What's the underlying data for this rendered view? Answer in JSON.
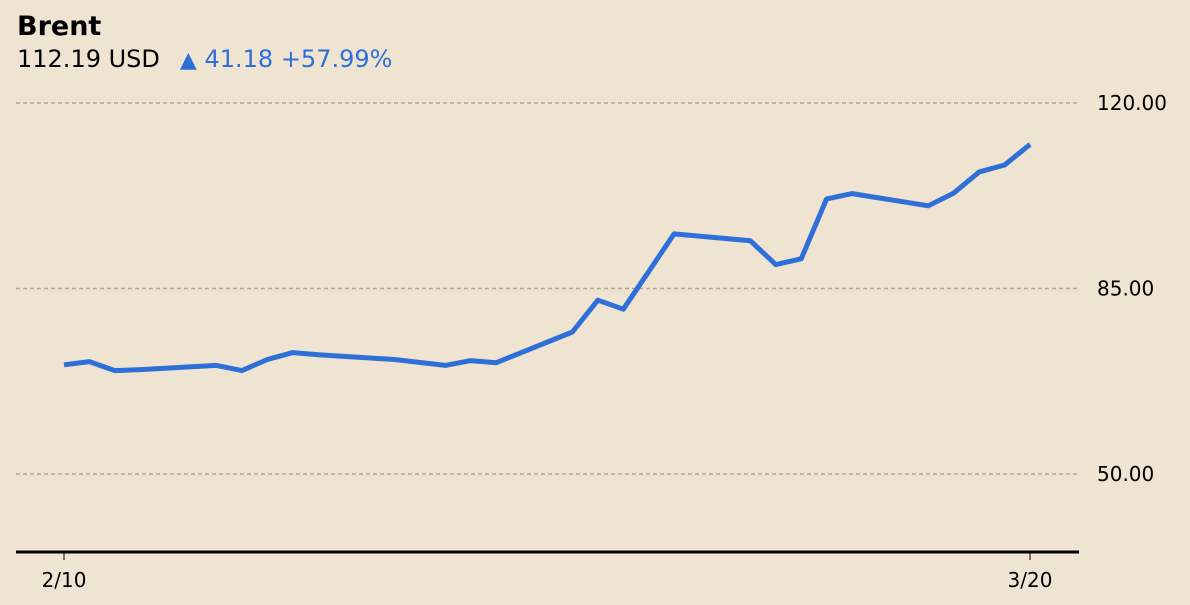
{
  "header": {
    "title": "Brent",
    "price": "112.19 USD",
    "arrow": "▲",
    "change": "41.18",
    "change_pct": "+57.99%"
  },
  "colors": {
    "background": "#efe3d2",
    "line": "#2e6fd8",
    "grid": "#b3a697",
    "axis": "#000000"
  },
  "chart_data": {
    "type": "line",
    "title": "Brent",
    "xlabel": "",
    "ylabel": "USD",
    "ylim": [
      35,
      130
    ],
    "yticks": [
      50,
      85,
      120
    ],
    "ytick_labels": [
      "50.00",
      "85.00",
      "120.00"
    ],
    "xtick_labels": [
      "2/10",
      "3/20"
    ],
    "grid": true,
    "legend": null,
    "series": [
      {
        "name": "Brent",
        "x": [
          0,
          1,
          2,
          3,
          6,
          7,
          8,
          9,
          10,
          13,
          15,
          16,
          17,
          20,
          21,
          22,
          24,
          27,
          28,
          29,
          30,
          31,
          34,
          35,
          36,
          37,
          38
        ],
        "values": [
          70.6,
          71.2,
          69.5,
          69.7,
          70.5,
          69.5,
          71.6,
          72.9,
          72.5,
          71.6,
          70.5,
          71.4,
          71.0,
          76.8,
          82.8,
          81.1,
          95.3,
          94.0,
          89.5,
          90.6,
          101.9,
          102.9,
          100.6,
          103.0,
          107.0,
          108.3,
          112.19
        ]
      }
    ]
  }
}
